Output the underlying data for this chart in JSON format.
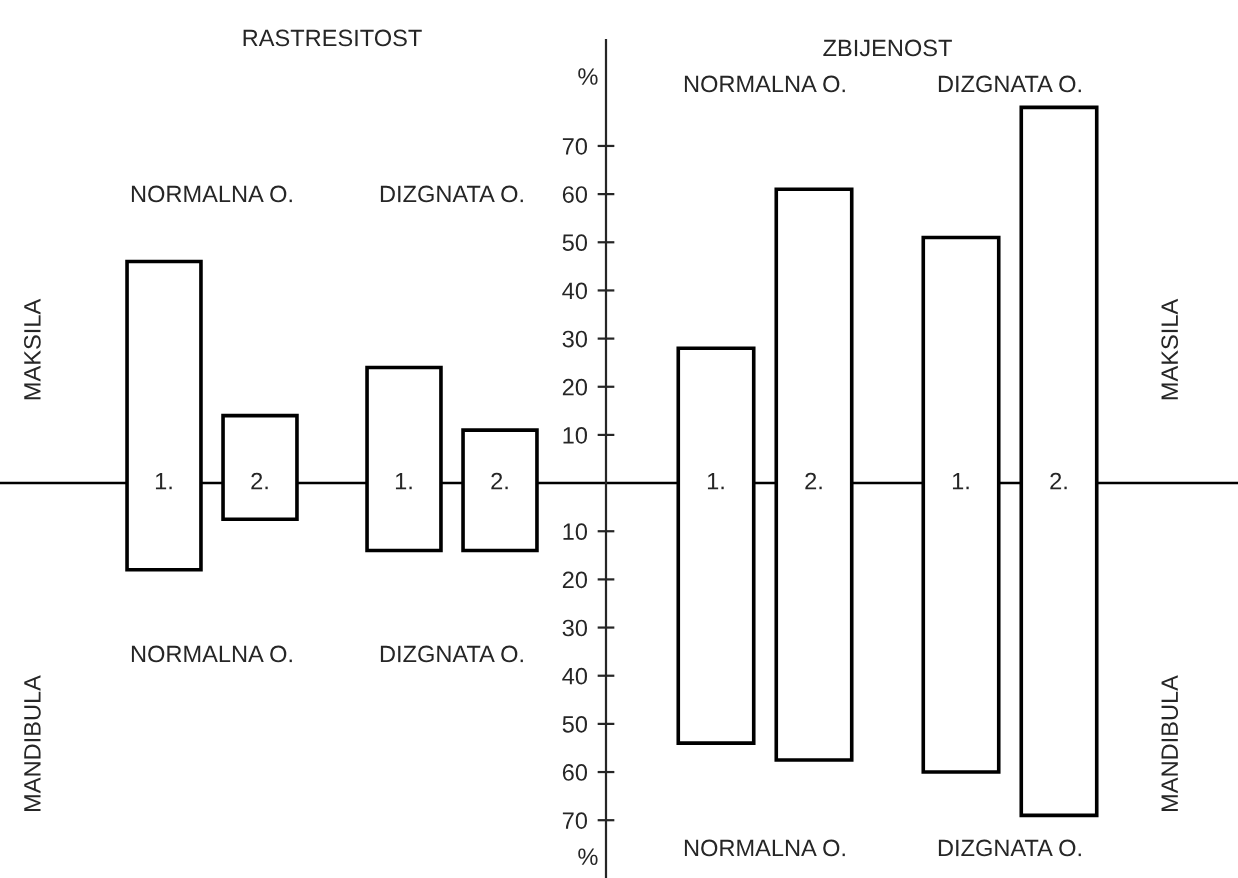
{
  "chart_data": [
    {
      "type": "bar",
      "title": "RASTRESITOST",
      "categories": [
        "1.",
        "2.",
        "1.",
        "2."
      ],
      "base": [
        -18,
        -7.5,
        -14,
        -14
      ],
      "values": [
        64,
        21.5,
        38,
        25
      ],
      "color": "#ffffff",
      "ylim": [
        -82,
        92
      ],
      "tick_labels": false,
      "ref_lines": [
        {
          "axis": "y",
          "value": 0,
          "label": null
        }
      ],
      "annotations": [
        "NORMALNA O.",
        "DIZGNATA O.",
        "NORMALNA O.",
        "DIZGNATA O.",
        "MAKSILA",
        "MANDIBULA"
      ]
    },
    {
      "type": "bar",
      "title": "ZBIJENOST",
      "categories": [
        "1.",
        "2.",
        "1.",
        "2."
      ],
      "base": [
        -54,
        -57.5,
        -60,
        -69
      ],
      "values": [
        82,
        118.5,
        111,
        147
      ],
      "color": "#ffffff",
      "ylim": [
        -82,
        92
      ],
      "ylabel": "%",
      "yticks": [
        {
          "value": -70,
          "label": "70"
        },
        {
          "value": -60,
          "label": "60"
        },
        {
          "value": -50,
          "label": "50"
        },
        {
          "value": -40,
          "label": "40"
        },
        {
          "value": -30,
          "label": "30"
        },
        {
          "value": -20,
          "label": "20"
        },
        {
          "value": -10,
          "label": "10"
        },
        10,
        20,
        30,
        40,
        50,
        60,
        70
      ],
      "tick_labels": "y",
      "ref_lines": [
        {
          "axis": "y",
          "value": 0,
          "label": null
        }
      ],
      "annotations": [
        "NORMALNA O.",
        "DIZGNATA O.",
        "NORMALNA O.",
        "DIZGNATA O.",
        "MAKSILA",
        "MANDIBULA"
      ]
    }
  ]
}
